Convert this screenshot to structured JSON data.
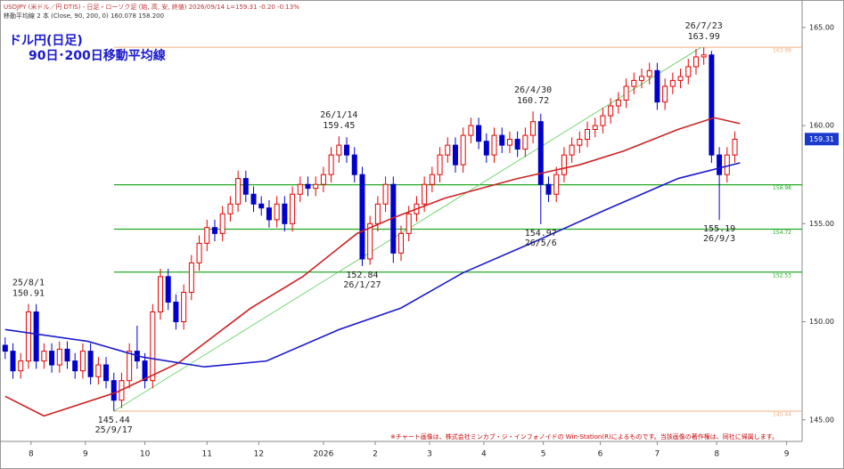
{
  "chart_data": {
    "type": "candlestick",
    "header": [
      "USDJPY (米ドル／円 DTIS) - 日足・ローソク足 (始, 高, 安, 終値)  2026/09/14 L=159.31 -0.20 -0.13%",
      "移動平均線 2 本 (Close, 90, 200, 0) 160.078 158.200"
    ],
    "title": "ドル円(日足)",
    "subtitle": "90日･200日移動平均線",
    "footnote": "※チャート画像は、株式会社ミンカブ・ジ・インフォノイドの Win-Station(R)によるものです。当該画像の著作権は、同社に帰属します。",
    "up_color": "#e60000",
    "down_color": "#0000cc",
    "xlim": [
      0,
      310
    ],
    "xticks": [
      {
        "value": 12,
        "label": "8"
      },
      {
        "value": 33,
        "label": "9"
      },
      {
        "value": 56,
        "label": "10"
      },
      {
        "value": 80,
        "label": "11"
      },
      {
        "value": 100,
        "label": "12"
      },
      {
        "value": 125,
        "label": "2026"
      },
      {
        "value": 145,
        "label": "2"
      },
      {
        "value": 166,
        "label": "3"
      },
      {
        "value": 187,
        "label": "4"
      },
      {
        "value": 210,
        "label": "5"
      },
      {
        "value": 232,
        "label": "6"
      },
      {
        "value": 254,
        "label": "7"
      },
      {
        "value": 277,
        "label": "8"
      },
      {
        "value": 304,
        "label": "9"
      }
    ],
    "ylim": [
      143.9,
      166.4
    ],
    "yticks": [
      {
        "value": 145,
        "label": "145.00"
      },
      {
        "value": 150,
        "label": "150.00"
      },
      {
        "value": 155,
        "label": "155.00"
      },
      {
        "value": 160,
        "label": "160.00"
      },
      {
        "value": 165,
        "label": "165.00"
      }
    ],
    "x": [
      2,
      5,
      8,
      11,
      14,
      17,
      20,
      23,
      26,
      29,
      32,
      35,
      38,
      41,
      44,
      47,
      50,
      53,
      56,
      59,
      62,
      65,
      68,
      71,
      74,
      77,
      80,
      83,
      86,
      89,
      92,
      95,
      98,
      101,
      104,
      107,
      110,
      113,
      116,
      119,
      122,
      125,
      128,
      131,
      134,
      137,
      140,
      143,
      146,
      149,
      152,
      155,
      158,
      161,
      164,
      167,
      170,
      173,
      176,
      179,
      182,
      185,
      188,
      191,
      194,
      197,
      200,
      203,
      206,
      209,
      212,
      215,
      218,
      221,
      224,
      227,
      230,
      233,
      236,
      239,
      242,
      245,
      248,
      251,
      254,
      257,
      260,
      263,
      266,
      269,
      272,
      275,
      278,
      281,
      284
    ],
    "open": [
      148.8,
      148.5,
      147.5,
      148,
      150.5,
      148,
      148.5,
      147.8,
      148.6,
      148,
      147.5,
      148.5,
      147.2,
      147.8,
      147,
      146,
      147,
      148.5,
      148,
      147,
      150.5,
      152.3,
      151,
      150,
      151.5,
      153,
      154,
      154.8,
      154.5,
      155.5,
      156,
      157.3,
      156.5,
      156,
      155.8,
      155.2,
      156,
      155,
      156.5,
      157,
      156.8,
      157,
      157.5,
      158.5,
      159,
      158.5,
      157.5,
      153.2,
      155,
      156,
      157,
      153.5,
      154.5,
      155.5,
      156,
      157,
      157.5,
      158.5,
      159,
      158,
      159.5,
      160,
      159.2,
      158.5,
      159.5,
      159,
      159.3,
      158.8,
      159.5,
      160.2,
      157,
      156.5,
      157.5,
      158.5,
      159,
      159.3,
      159.8,
      160,
      160.5,
      161,
      161.3,
      162,
      162.3,
      162.5,
      162.8,
      161.2,
      162,
      162.3,
      162.5,
      163,
      163.5,
      163.6,
      158.5,
      157.5,
      158.5
    ],
    "high": [
      149.2,
      148.9,
      148.4,
      150.91,
      150.9,
      148.9,
      148.9,
      149,
      149,
      148.4,
      148.9,
      148.9,
      148.2,
      148.2,
      147.4,
      147.4,
      148.9,
      149.8,
      148.4,
      150.9,
      152.7,
      152.7,
      151.4,
      151.9,
      153.4,
      154.4,
      155.2,
      155.2,
      155.9,
      156.4,
      157.7,
      157.7,
      156.9,
      156.4,
      156.2,
      156.4,
      156.4,
      156.9,
      157.4,
      157.4,
      157.4,
      157.9,
      158.9,
      159.45,
      159.4,
      158.9,
      157.9,
      155.4,
      156.4,
      157.4,
      157.4,
      154.9,
      155.9,
      156.4,
      157.4,
      157.9,
      158.9,
      159.4,
      159.4,
      159.9,
      160.4,
      160.4,
      159.6,
      159.9,
      159.9,
      159.7,
      159.7,
      159.9,
      160.72,
      160.6,
      157.4,
      157.9,
      158.9,
      159.4,
      159.7,
      160.2,
      160.4,
      160.9,
      161.4,
      161.7,
      162.4,
      162.7,
      162.9,
      163.2,
      163.2,
      162.4,
      162.7,
      162.9,
      163.4,
      163.9,
      163.99,
      163.8,
      158.9,
      158.9,
      159.7
    ],
    "low": [
      148.1,
      147.1,
      147.1,
      147.6,
      147.6,
      147.6,
      147.4,
      147.4,
      147.6,
      147.1,
      147.1,
      146.8,
      146.8,
      146.6,
      145.44,
      145.6,
      146.6,
      147.6,
      146.6,
      146.6,
      150.1,
      150.6,
      149.6,
      149.6,
      151.1,
      152.6,
      153.6,
      154.1,
      154.1,
      155.1,
      155.6,
      156.1,
      155.6,
      155.4,
      154.8,
      154.8,
      154.6,
      154.6,
      156.1,
      156.4,
      156.4,
      156.6,
      157.1,
      158.1,
      158.1,
      157.1,
      152.84,
      152.9,
      154.6,
      155.6,
      153,
      153.1,
      154.1,
      155.1,
      155.6,
      156.6,
      157.1,
      158.1,
      157.6,
      157.6,
      159.1,
      158.8,
      158.1,
      158.1,
      158.6,
      158.6,
      158.4,
      158.4,
      159.1,
      154.97,
      156.1,
      156.1,
      157.1,
      158.1,
      158.6,
      158.9,
      159.4,
      159.6,
      160.1,
      160.6,
      160.9,
      161.6,
      161.9,
      162.1,
      160.8,
      160.8,
      161.6,
      161.9,
      162.1,
      162.6,
      163.1,
      158.1,
      155.19,
      157.1,
      158.1
    ],
    "close": [
      148.5,
      147.5,
      148,
      150.5,
      148,
      148.5,
      147.8,
      148.6,
      148,
      147.5,
      148.5,
      147.2,
      147.8,
      147,
      146,
      147,
      148.5,
      148,
      147,
      150.5,
      152.3,
      151,
      150,
      151.5,
      153,
      154,
      154.8,
      154.5,
      155.5,
      156,
      157.3,
      156.5,
      156,
      155.8,
      155.2,
      156,
      155,
      156.5,
      157,
      156.8,
      157,
      157.5,
      158.5,
      159,
      158.5,
      157.5,
      153.2,
      155,
      156,
      157,
      153.5,
      154.5,
      155.5,
      156,
      157,
      157.5,
      158.5,
      159,
      158,
      159.5,
      160,
      159.2,
      158.5,
      159.5,
      159,
      159.3,
      158.8,
      159.5,
      160.2,
      157,
      156.5,
      157.5,
      158.5,
      159,
      159.3,
      159.8,
      160,
      160.5,
      161,
      161.3,
      162,
      162.3,
      162.5,
      162.8,
      161.2,
      162,
      162.3,
      162.5,
      163,
      163.5,
      163.6,
      158.5,
      157.5,
      158.5,
      159.3
    ],
    "series": [
      {
        "name": "90日移動平均線",
        "color": "#cc2222",
        "x": [
          2,
          17,
          45,
          69,
          97,
          117,
          138,
          152,
          172,
          200,
          224,
          241,
          262,
          276,
          286
        ],
        "values": [
          146.2,
          145.2,
          146.4,
          147.9,
          150.7,
          152.3,
          154.5,
          155.3,
          156.3,
          157.3,
          158,
          158.7,
          159.8,
          160.4,
          160.1
        ]
      },
      {
        "name": "200日移動平均線",
        "color": "#1a1acc",
        "x": [
          2,
          34,
          55,
          79,
          103,
          131,
          155,
          179,
          207,
          234,
          262,
          286
        ],
        "values": [
          149.6,
          149,
          148.2,
          147.7,
          148,
          149.6,
          150.7,
          152.5,
          154.1,
          155.7,
          157.3,
          158.1
        ]
      }
    ],
    "trendline": {
      "color": "#55cc55",
      "x": [
        44,
        271
      ],
      "values": [
        145.44,
        163.99
      ]
    },
    "levels": [
      {
        "value": 163.99,
        "color": "#f0b080"
      },
      {
        "value": 156.98,
        "color": "#22aa22"
      },
      {
        "value": 154.72,
        "color": "#22aa22"
      },
      {
        "value": 152.53,
        "color": "#22aa22"
      },
      {
        "value": 145.44,
        "color": "#f0b080"
      }
    ],
    "last": 159.31,
    "annotations": [
      {
        "x": 11,
        "value": 150.91,
        "date": "25/8/1",
        "position": "above"
      },
      {
        "x": 44,
        "value": 145.44,
        "date": "25/9/17",
        "position": "below"
      },
      {
        "x": 131,
        "value": 159.45,
        "date": "26/1/14",
        "position": "above"
      },
      {
        "x": 140,
        "value": 152.84,
        "date": "26/1/27",
        "position": "below"
      },
      {
        "x": 206,
        "value": 160.72,
        "date": "26/4/30",
        "position": "above"
      },
      {
        "x": 209,
        "value": 154.97,
        "date": "26/5/6",
        "position": "below"
      },
      {
        "x": 272,
        "value": 163.99,
        "date": "26/7/23",
        "position": "above"
      },
      {
        "x": 278,
        "value": 155.19,
        "date": "26/9/3",
        "position": "below"
      }
    ]
  }
}
